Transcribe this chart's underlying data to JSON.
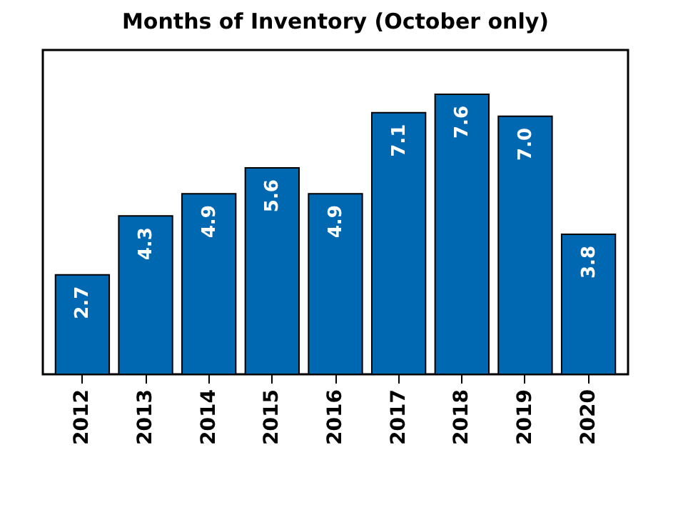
{
  "chart_data": {
    "type": "bar",
    "title": "Months of Inventory (October only)",
    "categories": [
      "2012",
      "2013",
      "2014",
      "2015",
      "2016",
      "2017",
      "2018",
      "2019",
      "2020"
    ],
    "values": [
      2.7,
      4.3,
      4.9,
      5.6,
      4.9,
      7.1,
      7.6,
      7.0,
      3.8
    ],
    "value_labels": [
      "2.7",
      "4.3",
      "4.9",
      "5.6",
      "4.9",
      "7.1",
      "7.6",
      "7.0",
      "3.8"
    ],
    "color": "#0067b1",
    "ylim": [
      0,
      8.8
    ],
    "grid": false,
    "tick_labels": "x"
  }
}
